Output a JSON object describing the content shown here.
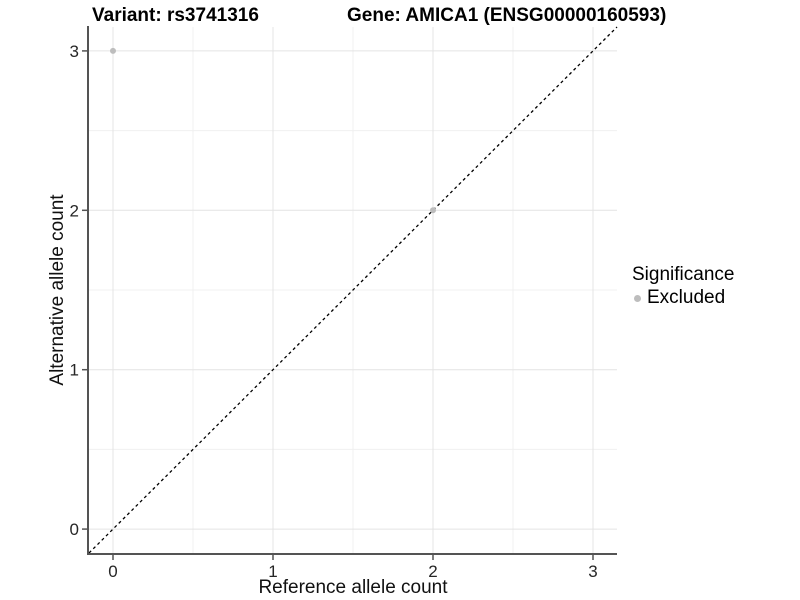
{
  "chart_data": {
    "type": "scatter",
    "titles": {
      "left": "Variant: rs3741316",
      "right": "Gene: AMICA1 (ENSG00000160593)"
    },
    "xlabel": "Reference allele count",
    "ylabel": "Alternative allele count",
    "xlim": [
      -0.15,
      3.15
    ],
    "ylim": [
      -0.15,
      3.15
    ],
    "x_ticks": [
      0,
      1,
      2,
      3
    ],
    "y_ticks": [
      0,
      1,
      2,
      3
    ],
    "x_minor": [
      0.5,
      1.5,
      2.5
    ],
    "y_minor": [
      0.5,
      1.5,
      2.5
    ],
    "grid": "major+minor",
    "legend_position": "right",
    "series": [
      {
        "name": "Excluded",
        "color": "#bdbdbd",
        "points": [
          {
            "x": 0,
            "y": 3
          },
          {
            "x": 2,
            "y": 2
          }
        ]
      }
    ],
    "identity_line": {
      "type": "abline",
      "slope": 1,
      "intercept": 0,
      "style": "dashed",
      "color": "#000000"
    },
    "legend": {
      "title": "Significance",
      "items": [
        {
          "label": "Excluded",
          "color": "#bdbdbd"
        }
      ]
    },
    "colors": {
      "background": "#ffffff",
      "grid_major": "#e4e4e4",
      "grid_minor": "#f0f0f0",
      "axis_line": "#545454",
      "tick_text": "#262626",
      "point_excluded": "#bdbdbd"
    }
  }
}
